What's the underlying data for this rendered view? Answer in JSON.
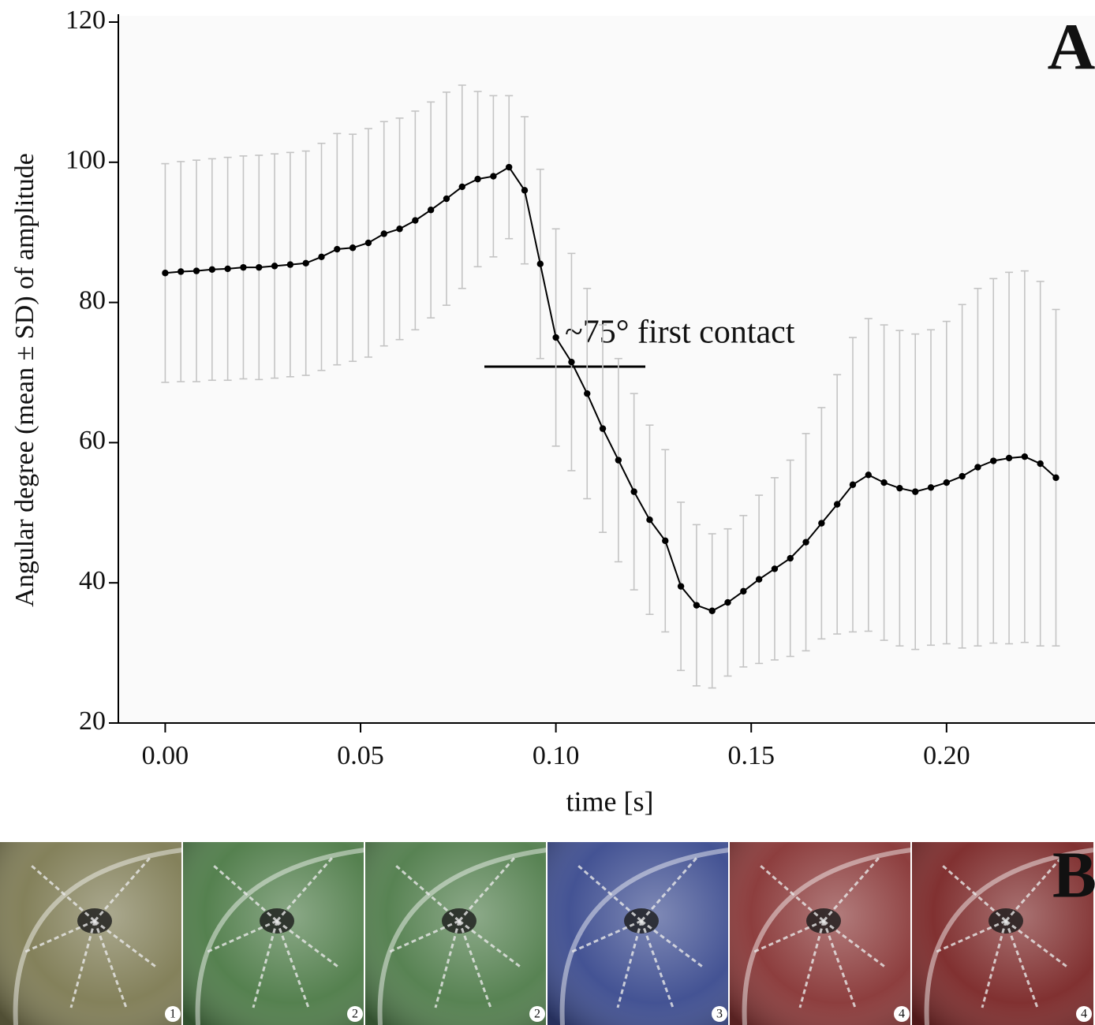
{
  "chart_data": {
    "type": "errorline",
    "panel_label": "A",
    "x_label": "time [s]",
    "y_label": "Angular degree (mean ± SD) of amplitude",
    "annotation": "~75° first contact",
    "color": "#000000",
    "error_color": "#c4c4c4",
    "xlim": [
      -0.012,
      0.238
    ],
    "ylim": [
      20,
      120
    ],
    "xticks": [
      {
        "value": 0,
        "label": "0.00"
      },
      {
        "value": 0.05,
        "label": "0.05"
      },
      {
        "value": 0.1,
        "label": "0.10"
      },
      {
        "value": 0.15,
        "label": "0.15"
      },
      {
        "value": 0.2,
        "label": "0.20"
      }
    ],
    "yticks": [
      20,
      40,
      60,
      80,
      100,
      120
    ],
    "x": [
      0,
      0.004,
      0.008,
      0.012,
      0.016,
      0.02,
      0.024,
      0.028,
      0.032,
      0.036,
      0.04,
      0.044,
      0.048,
      0.052,
      0.056,
      0.06,
      0.064,
      0.068,
      0.072,
      0.076,
      0.08,
      0.084,
      0.088,
      0.092,
      0.096,
      0.1,
      0.104,
      0.108,
      0.112,
      0.116,
      0.12,
      0.124,
      0.128,
      0.132,
      0.136,
      0.14,
      0.144,
      0.148,
      0.152,
      0.156,
      0.16,
      0.164,
      0.168,
      0.172,
      0.176,
      0.18,
      0.184,
      0.188,
      0.192,
      0.196,
      0.2,
      0.204,
      0.208,
      0.212,
      0.216,
      0.22,
      0.224,
      0.228
    ],
    "values": [
      84.2,
      84.4,
      84.5,
      84.7,
      84.8,
      85.0,
      85.0,
      85.2,
      85.4,
      85.6,
      86.5,
      87.6,
      87.8,
      88.5,
      89.8,
      90.5,
      91.7,
      93.2,
      94.8,
      96.5,
      97.6,
      98.0,
      99.3,
      96.0,
      85.5,
      75.0,
      71.5,
      67.0,
      62.0,
      57.5,
      53.0,
      49.0,
      46.0,
      39.5,
      36.8,
      36.0,
      37.2,
      38.8,
      40.5,
      42.0,
      43.5,
      45.8,
      48.5,
      51.2,
      54.0,
      55.4,
      54.3,
      53.5,
      53.0,
      53.6,
      54.3,
      55.2,
      56.5,
      57.4,
      57.8,
      58.0,
      57.0,
      55.0
    ],
    "errors": [
      15.6,
      15.7,
      15.8,
      15.8,
      15.9,
      15.9,
      16.0,
      16.0,
      16.0,
      16.0,
      16.2,
      16.5,
      16.2,
      16.3,
      16.0,
      15.8,
      15.6,
      15.4,
      15.2,
      14.5,
      12.5,
      11.5,
      10.2,
      10.5,
      13.5,
      15.5,
      15.5,
      15.0,
      14.8,
      14.5,
      14.0,
      13.5,
      13.0,
      12.0,
      11.5,
      11.0,
      10.5,
      10.8,
      12.0,
      13.0,
      14.0,
      15.5,
      16.5,
      18.5,
      21.0,
      22.3,
      22.5,
      22.5,
      22.5,
      22.5,
      23.0,
      24.5,
      25.5,
      26.0,
      26.5,
      26.5,
      26.0,
      24.0
    ]
  },
  "photo_strip": {
    "label": "B",
    "frames": [
      "1",
      "2",
      "2",
      "3",
      "4",
      "4"
    ]
  }
}
